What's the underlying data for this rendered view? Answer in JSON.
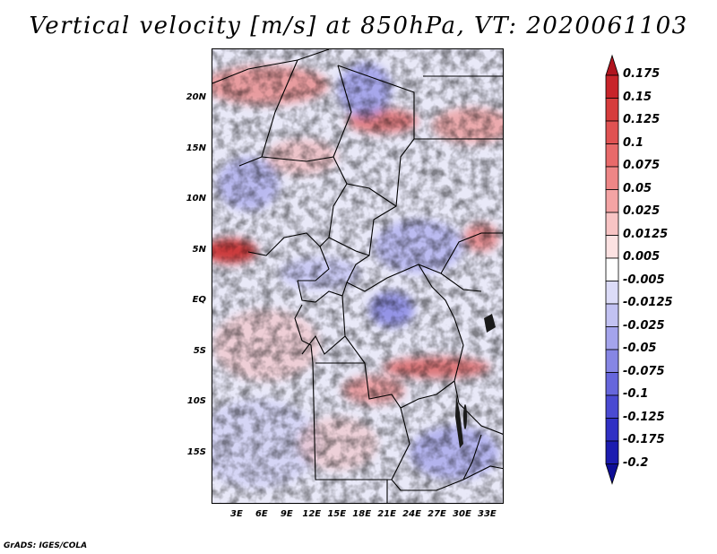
{
  "title": "Vertical velocity [m/s] at 850hPa, VT: 2020061103",
  "map": {
    "region": "Central Africa",
    "variable": "Vertical velocity",
    "units": "m/s",
    "level": "850hPa",
    "valid_time": "2020061103",
    "lat_labels": [
      "20N",
      "15N",
      "10N",
      "5N",
      "EQ",
      "5S",
      "10S",
      "15S"
    ],
    "lon_labels": [
      "3E",
      "6E",
      "9E",
      "12E",
      "15E",
      "18E",
      "21E",
      "24E",
      "27E",
      "30E",
      "33E"
    ],
    "lat_values": [
      20,
      15,
      10,
      5,
      0,
      -5,
      -10,
      -15
    ],
    "lon_values": [
      3,
      6,
      9,
      12,
      15,
      18,
      21,
      24,
      27,
      30,
      33
    ],
    "lon_range": [
      0,
      35
    ],
    "lat_range": [
      -20,
      25
    ]
  },
  "colorbar": {
    "labels": [
      "0.175",
      "0.15",
      "0.125",
      "0.1",
      "0.075",
      "0.05",
      "0.025",
      "0.0125",
      "0.005",
      "-0.005",
      "-0.0125",
      "-0.025",
      "-0.05",
      "-0.075",
      "-0.1",
      "-0.125",
      "-0.175",
      "-0.2"
    ],
    "colors": [
      "#b0141e",
      "#c8242a",
      "#d63c3c",
      "#e05252",
      "#e86a6a",
      "#ee8686",
      "#f4a4a4",
      "#f8c4c4",
      "#fce2e2",
      "#ffffff",
      "#dcdcf8",
      "#c2c2f2",
      "#a4a4ec",
      "#8686e4",
      "#6666dc",
      "#4a4ad2",
      "#3030c4",
      "#1c1cb0",
      "#0e0e96"
    ]
  },
  "footer": "GrADS: IGES/COLA"
}
